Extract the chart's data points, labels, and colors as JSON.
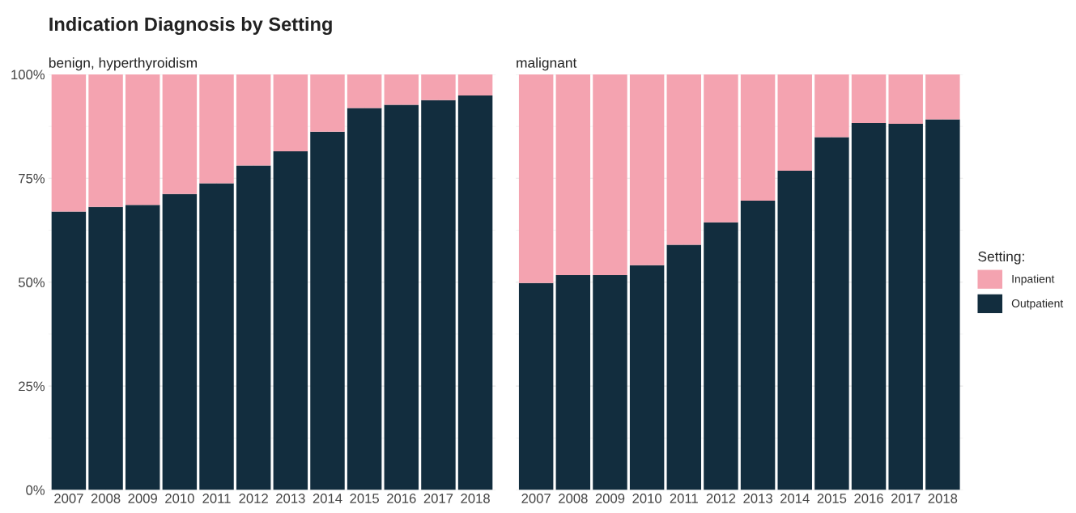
{
  "chart_data": [
    {
      "type": "bar",
      "title": "Indication Diagnosis by Setting",
      "subtitle": "benign, hyperthyroidism",
      "stacked": true,
      "legend": false,
      "grid": true,
      "categories": [
        "2007",
        "2008",
        "2009",
        "2010",
        "2011",
        "2012",
        "2013",
        "2014",
        "2015",
        "2016",
        "2017",
        "2018"
      ],
      "ylim": [
        0,
        100
      ],
      "yticks": [
        {
          "value": 0,
          "label": "0%"
        },
        {
          "value": 25,
          "label": "25%"
        },
        {
          "value": 50,
          "label": "50%"
        },
        {
          "value": 75,
          "label": "75%"
        },
        {
          "value": 100,
          "label": "100%"
        }
      ],
      "series": [
        {
          "color": "#122d3e",
          "values": [
            67.0,
            68.1,
            68.6,
            71.2,
            73.8,
            78.1,
            81.5,
            86.2,
            91.9,
            92.7,
            93.8,
            94.9
          ]
        },
        {
          "color": "#f4a3b0",
          "values": [
            33.0,
            31.9,
            31.4,
            28.8,
            26.2,
            21.9,
            18.5,
            13.8,
            8.1,
            7.3,
            6.2,
            5.1
          ]
        }
      ]
    },
    {
      "type": "bar",
      "subtitle": "malignant",
      "stacked": true,
      "legend": "right",
      "legend_title": "Setting:",
      "grid": true,
      "tick_labels": "x",
      "categories": [
        "2007",
        "2008",
        "2009",
        "2010",
        "2011",
        "2012",
        "2013",
        "2014",
        "2015",
        "2016",
        "2017",
        "2018"
      ],
      "ylim": [
        0,
        100
      ],
      "yticks": [
        {
          "value": 0,
          "label": null
        },
        {
          "value": 25,
          "label": null
        },
        {
          "value": 50,
          "label": null
        },
        {
          "value": 75,
          "label": null
        },
        {
          "value": 100,
          "label": null
        }
      ],
      "series": [
        {
          "name": "Outpatient",
          "color": "#122d3e",
          "values": [
            49.8,
            51.7,
            51.7,
            54.1,
            59.0,
            64.4,
            69.6,
            76.8,
            84.9,
            88.3,
            88.1,
            89.2
          ]
        },
        {
          "name": "Inpatient",
          "color": "#f4a3b0",
          "values": [
            50.2,
            48.3,
            48.3,
            45.9,
            41.0,
            35.6,
            30.4,
            23.2,
            15.1,
            11.7,
            11.9,
            10.8
          ]
        }
      ]
    }
  ]
}
